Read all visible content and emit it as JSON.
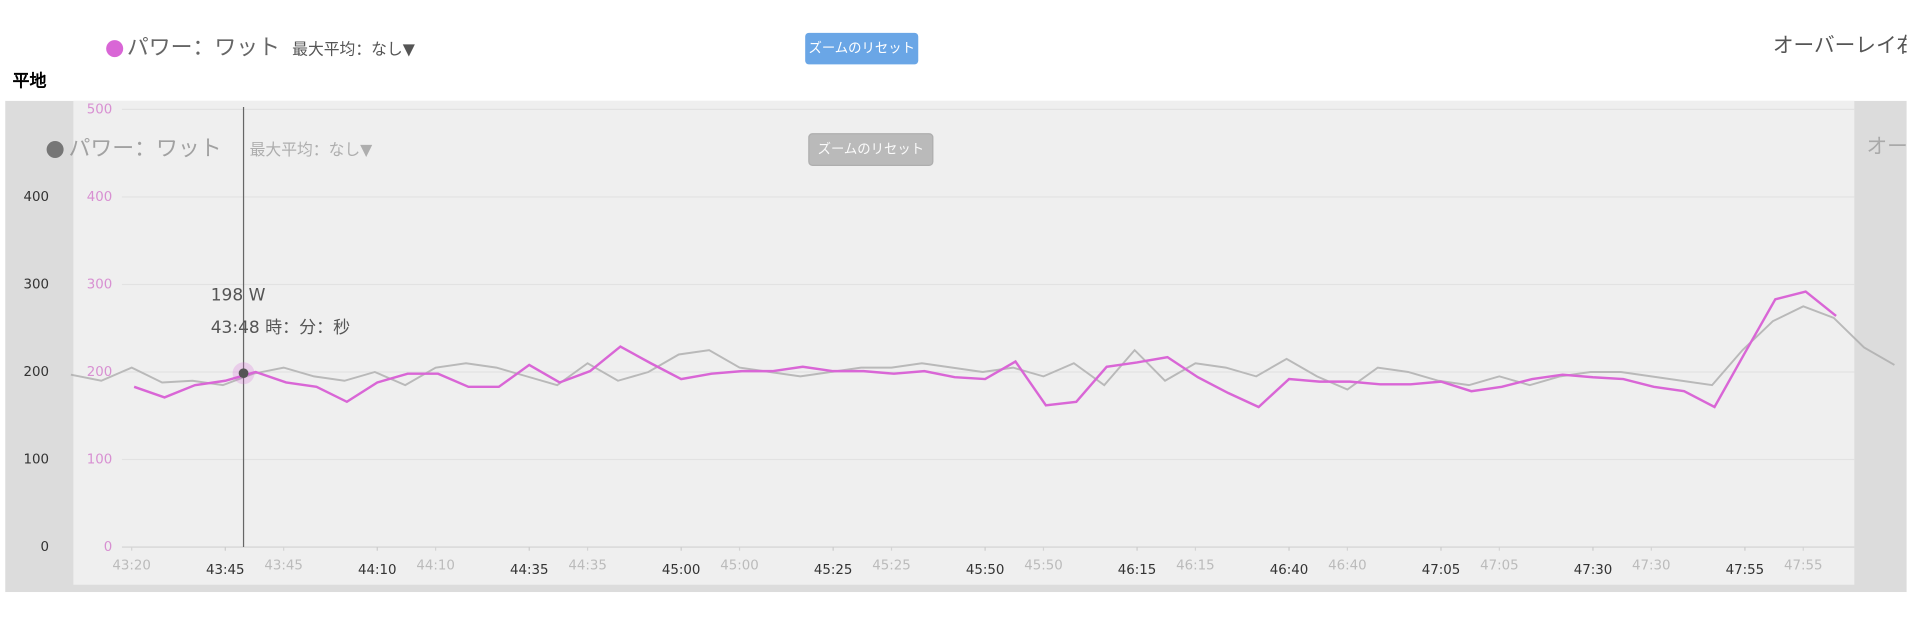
{
  "header": {
    "label": "平地"
  },
  "chart_data": [
    {
      "type": "line",
      "max_average": "最大平均：なし▼",
      "reset_button": "ズームのリセット",
      "overlay": "オーバーレイ右",
      "tooltip": {
        "value": "198 W",
        "time": "43:48 時：分：秒"
      },
      "xlim": [
        2600,
        2893
      ],
      "xticks": [
        {
          "value": 2625,
          "label": "43:45"
        },
        {
          "value": 2650,
          "label": "44:10"
        },
        {
          "value": 2675,
          "label": "44:35"
        },
        {
          "value": 2700,
          "label": "45:00"
        },
        {
          "value": 2725,
          "label": "45:25"
        },
        {
          "value": 2750,
          "label": "45:50"
        },
        {
          "value": 2775,
          "label": "46:15"
        },
        {
          "value": 2800,
          "label": "46:40"
        },
        {
          "value": 2825,
          "label": "47:05"
        },
        {
          "value": 2850,
          "label": "47:30"
        },
        {
          "value": 2875,
          "label": "47:55"
        }
      ],
      "ylim": [
        0,
        400
      ],
      "yticks": [
        0,
        100,
        200,
        300,
        400
      ],
      "series": [
        {
          "name": "パワー：ワット",
          "color": "#d966d6",
          "x": [
            2610,
            2615,
            2620,
            2625,
            2630,
            2635,
            2640,
            2645,
            2650,
            2655,
            2660,
            2665,
            2670,
            2675,
            2680,
            2685,
            2690,
            2695,
            2700,
            2705,
            2710,
            2715,
            2720,
            2725,
            2730,
            2735,
            2740,
            2745,
            2750,
            2755,
            2760,
            2765,
            2770,
            2775,
            2780,
            2785,
            2790,
            2795,
            2800,
            2805,
            2810,
            2815,
            2820,
            2825,
            2830,
            2835,
            2840,
            2845,
            2850,
            2855,
            2860,
            2865,
            2870,
            2875,
            2880,
            2885,
            2890
          ],
          "values": [
            183,
            171,
            185,
            190,
            200,
            188,
            183,
            166,
            188,
            198,
            198,
            183,
            183,
            208,
            188,
            201,
            229,
            210,
            192,
            198,
            201,
            201,
            206,
            201,
            201,
            198,
            201,
            194,
            192,
            212,
            162,
            166,
            206,
            211,
            217,
            194,
            176,
            160,
            192,
            189,
            189,
            186,
            186,
            189,
            178,
            183,
            192,
            197,
            194,
            192,
            183,
            178,
            160,
            222,
            283,
            292,
            264
          ]
        }
      ]
    },
    {
      "type": "line",
      "max_average": "最大平均：なし▼",
      "reset_button": "ズームのリセット",
      "overlay": "オーバーレイ右",
      "xlim": [
        2590,
        2893
      ],
      "xticks": [
        {
          "value": 2600,
          "label": "43:20"
        },
        {
          "value": 2625,
          "label": "43:45"
        },
        {
          "value": 2650,
          "label": "44:10"
        },
        {
          "value": 2675,
          "label": "44:35"
        },
        {
          "value": 2700,
          "label": "45:00"
        },
        {
          "value": 2725,
          "label": "45:25"
        },
        {
          "value": 2750,
          "label": "45:50"
        },
        {
          "value": 2775,
          "label": "46:15"
        },
        {
          "value": 2800,
          "label": "46:40"
        },
        {
          "value": 2825,
          "label": "47:05"
        },
        {
          "value": 2850,
          "label": "47:30"
        },
        {
          "value": 2875,
          "label": "47:55"
        }
      ],
      "ylim": [
        0,
        500
      ],
      "yticks": [
        0,
        100,
        200,
        300,
        400,
        500
      ],
      "tick_color": "#d070c8",
      "grid": true,
      "series": [
        {
          "name": "パワー：ワット",
          "color": "#a8a8a8",
          "legend_color": "#555555",
          "x": [
            2590,
            2595,
            2600,
            2605,
            2610,
            2615,
            2620,
            2625,
            2630,
            2635,
            2640,
            2645,
            2650,
            2655,
            2660,
            2665,
            2670,
            2675,
            2680,
            2685,
            2690,
            2695,
            2700,
            2705,
            2710,
            2715,
            2720,
            2725,
            2730,
            2735,
            2740,
            2745,
            2750,
            2755,
            2760,
            2765,
            2770,
            2775,
            2780,
            2785,
            2790,
            2795,
            2800,
            2805,
            2810,
            2815,
            2820,
            2825,
            2830,
            2835,
            2840,
            2845,
            2850,
            2855,
            2860,
            2865,
            2870,
            2875,
            2880,
            2885,
            2890
          ],
          "values": [
            197,
            190,
            205,
            188,
            190,
            185,
            198,
            205,
            195,
            190,
            200,
            185,
            205,
            210,
            205,
            195,
            185,
            210,
            190,
            200,
            220,
            225,
            205,
            200,
            195,
            200,
            205,
            205,
            210,
            205,
            200,
            205,
            195,
            210,
            185,
            225,
            190,
            210,
            205,
            195,
            215,
            195,
            180,
            205,
            200,
            190,
            185,
            195,
            185,
            195,
            200,
            200,
            195,
            190,
            185,
            225,
            258,
            275,
            262,
            228,
            208
          ]
        }
      ]
    }
  ]
}
